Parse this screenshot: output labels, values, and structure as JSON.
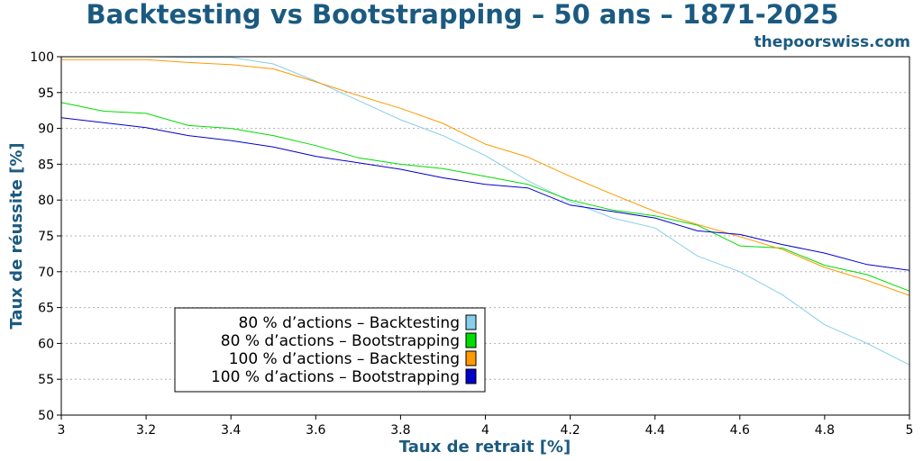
{
  "chart_data": {
    "type": "line",
    "title": "Backtesting vs Bootstrapping – 50 ans – 1871-2025",
    "source": "thepoorswiss.com",
    "xlabel": "Taux de retrait [%]",
    "ylabel": "Taux de réussite [%]",
    "xlim": [
      3,
      5
    ],
    "ylim": [
      50,
      100
    ],
    "x_ticks": [
      "3",
      "3.2",
      "3.4",
      "3.6",
      "3.8",
      "4",
      "4.2",
      "4.4",
      "4.6",
      "4.8",
      "5"
    ],
    "y_ticks": [
      "50",
      "55",
      "60",
      "65",
      "70",
      "75",
      "80",
      "85",
      "90",
      "95",
      "100"
    ],
    "grid": "horizontal-dotted",
    "legend_position": "lower-left",
    "x": [
      3.0,
      3.1,
      3.2,
      3.3,
      3.4,
      3.5,
      3.6,
      3.7,
      3.8,
      3.9,
      4.0,
      4.1,
      4.2,
      4.3,
      4.4,
      4.5,
      4.6,
      4.7,
      4.8,
      4.9,
      5.0
    ],
    "series": [
      {
        "name": "80 % d’actions – Backtesting",
        "color": "#87ceeb",
        "values": [
          100,
          100,
          100,
          99.9,
          99.9,
          99.0,
          96.6,
          93.9,
          91.2,
          89.0,
          86.2,
          82.7,
          79.8,
          77.5,
          76.1,
          72.2,
          70.0,
          66.8,
          62.6,
          60.0,
          57.0
        ]
      },
      {
        "name": "80 % d’actions – Bootstrapping",
        "color": "#00dd00",
        "values": [
          93.6,
          92.4,
          92.1,
          90.4,
          90.0,
          89.0,
          87.6,
          85.9,
          85.0,
          84.4,
          83.3,
          82.2,
          80.0,
          78.6,
          77.8,
          76.5,
          73.6,
          73.3,
          70.9,
          69.6,
          67.3
        ]
      },
      {
        "name": "100 % d’actions – Backtesting",
        "color": "#ff9900",
        "values": [
          99.6,
          99.6,
          99.6,
          99.2,
          98.9,
          98.3,
          96.5,
          94.6,
          92.8,
          90.7,
          87.8,
          86.0,
          83.3,
          80.8,
          78.4,
          76.6,
          74.9,
          73.1,
          70.6,
          68.8,
          66.7
        ]
      },
      {
        "name": "100 % d’actions – Bootstrapping",
        "color": "#0000cc",
        "values": [
          91.5,
          90.8,
          90.1,
          89.0,
          88.3,
          87.4,
          86.1,
          85.2,
          84.3,
          83.1,
          82.2,
          81.7,
          79.3,
          78.4,
          77.5,
          75.7,
          75.2,
          73.8,
          72.6,
          71.0,
          70.2
        ]
      }
    ]
  }
}
